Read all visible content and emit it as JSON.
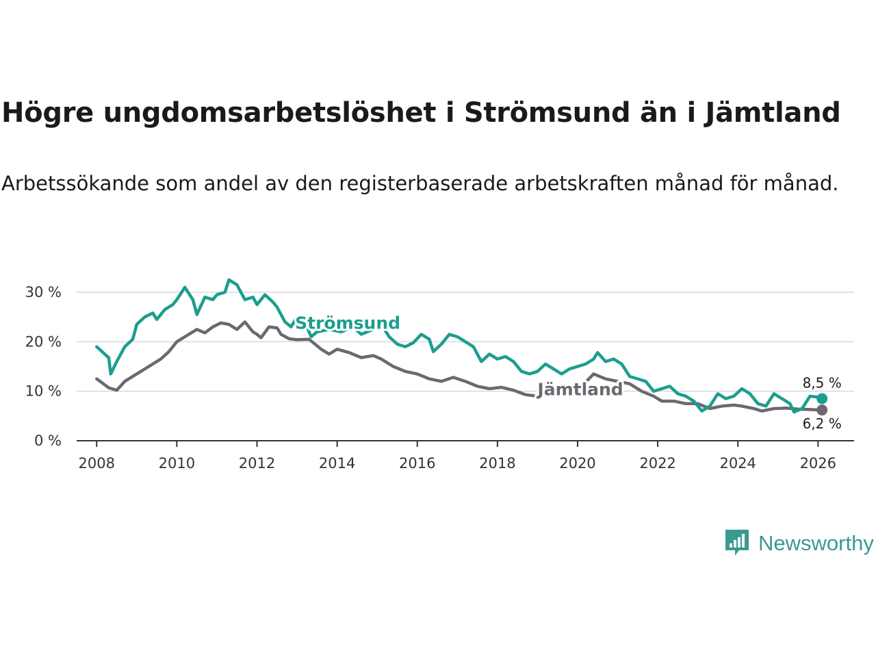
{
  "header": {
    "title": "Högre ungdomsarbetslöshet i Strömsund än i Jämtland",
    "subtitle": "Arbetssökande som andel av den registerbaserade arbetskraften månad för månad."
  },
  "brand": {
    "name": "Newsworthy",
    "icon": "newsworthy-logo-icon",
    "color": "#3a9a90"
  },
  "chart_data": {
    "type": "line",
    "title": "Högre ungdomsarbetslöshet i Strömsund än i Jämtland",
    "xlabel": "",
    "ylabel": "",
    "xlim": [
      2007.5,
      2026.9
    ],
    "ylim": [
      0,
      30
    ],
    "grid": true,
    "x_ticks": [
      2008,
      2010,
      2012,
      2014,
      2016,
      2018,
      2020,
      2022,
      2024,
      2026
    ],
    "x_tick_labels": [
      "2008",
      "2010",
      "2012",
      "2014",
      "2016",
      "2018",
      "2020",
      "2022",
      "2024",
      "2026"
    ],
    "y_ticks": [
      0,
      10,
      20,
      30
    ],
    "y_tick_labels": [
      "0 %",
      "10 %",
      "20 %",
      "30 %"
    ],
    "series": [
      {
        "name": "Jämtland",
        "color": "#6b6870",
        "label_position": "middle-right",
        "end_label": "6,2 %",
        "points": [
          [
            2008.0,
            12.5
          ],
          [
            2008.3,
            10.7
          ],
          [
            2008.5,
            10.2
          ],
          [
            2008.7,
            12.0
          ],
          [
            2009.0,
            13.5
          ],
          [
            2009.3,
            15.0
          ],
          [
            2009.6,
            16.5
          ],
          [
            2009.8,
            18.0
          ],
          [
            2010.0,
            20.0
          ],
          [
            2010.3,
            21.5
          ],
          [
            2010.5,
            22.5
          ],
          [
            2010.7,
            21.8
          ],
          [
            2010.9,
            23.0
          ],
          [
            2011.1,
            23.8
          ],
          [
            2011.3,
            23.5
          ],
          [
            2011.5,
            22.5
          ],
          [
            2011.7,
            24.0
          ],
          [
            2011.9,
            22.0
          ],
          [
            2012.0,
            21.5
          ],
          [
            2012.1,
            20.8
          ],
          [
            2012.3,
            23.0
          ],
          [
            2012.5,
            22.8
          ],
          [
            2012.6,
            21.5
          ],
          [
            2012.8,
            20.6
          ],
          [
            2013.0,
            20.4
          ],
          [
            2013.3,
            20.5
          ],
          [
            2013.6,
            18.5
          ],
          [
            2013.8,
            17.5
          ],
          [
            2014.0,
            18.5
          ],
          [
            2014.3,
            17.8
          ],
          [
            2014.6,
            16.8
          ],
          [
            2014.9,
            17.2
          ],
          [
            2015.1,
            16.5
          ],
          [
            2015.4,
            15.0
          ],
          [
            2015.7,
            14.0
          ],
          [
            2016.0,
            13.5
          ],
          [
            2016.3,
            12.5
          ],
          [
            2016.6,
            12.0
          ],
          [
            2016.9,
            12.8
          ],
          [
            2017.2,
            12.0
          ],
          [
            2017.5,
            11.0
          ],
          [
            2017.8,
            10.5
          ],
          [
            2018.1,
            10.8
          ],
          [
            2018.4,
            10.2
          ],
          [
            2018.7,
            9.3
          ],
          [
            2019.0,
            9.0
          ],
          [
            2019.3,
            9.5
          ],
          [
            2019.6,
            9.5
          ],
          [
            2019.9,
            10.0
          ],
          [
            2020.1,
            11.0
          ],
          [
            2020.4,
            13.5
          ],
          [
            2020.7,
            12.5
          ],
          [
            2021.0,
            12.0
          ],
          [
            2021.3,
            11.5
          ],
          [
            2021.6,
            10.0
          ],
          [
            2021.9,
            9.0
          ],
          [
            2022.1,
            8.0
          ],
          [
            2022.4,
            8.0
          ],
          [
            2022.7,
            7.5
          ],
          [
            2023.0,
            7.5
          ],
          [
            2023.3,
            6.5
          ],
          [
            2023.6,
            7.0
          ],
          [
            2023.9,
            7.2
          ],
          [
            2024.1,
            7.0
          ],
          [
            2024.4,
            6.5
          ],
          [
            2024.6,
            6.0
          ],
          [
            2024.9,
            6.5
          ],
          [
            2025.2,
            6.6
          ],
          [
            2025.5,
            6.4
          ],
          [
            2025.8,
            6.3
          ],
          [
            2026.1,
            6.2
          ]
        ]
      },
      {
        "name": "Strömsund",
        "color": "#1b9e8e",
        "label_position": "upper-middle",
        "end_label": "8,5 %",
        "points": [
          [
            2008.0,
            19.0
          ],
          [
            2008.2,
            17.5
          ],
          [
            2008.3,
            16.8
          ],
          [
            2008.35,
            13.5
          ],
          [
            2008.5,
            16.0
          ],
          [
            2008.7,
            19.0
          ],
          [
            2008.9,
            20.5
          ],
          [
            2009.0,
            23.5
          ],
          [
            2009.2,
            25.0
          ],
          [
            2009.4,
            25.8
          ],
          [
            2009.5,
            24.5
          ],
          [
            2009.7,
            26.5
          ],
          [
            2009.9,
            27.5
          ],
          [
            2010.0,
            28.5
          ],
          [
            2010.2,
            31.0
          ],
          [
            2010.4,
            28.5
          ],
          [
            2010.5,
            25.5
          ],
          [
            2010.7,
            29.0
          ],
          [
            2010.9,
            28.5
          ],
          [
            2011.0,
            29.5
          ],
          [
            2011.2,
            30.0
          ],
          [
            2011.3,
            32.5
          ],
          [
            2011.5,
            31.5
          ],
          [
            2011.7,
            28.5
          ],
          [
            2011.9,
            29.0
          ],
          [
            2012.0,
            27.5
          ],
          [
            2012.2,
            29.5
          ],
          [
            2012.4,
            28.0
          ],
          [
            2012.5,
            27.0
          ],
          [
            2012.7,
            24.0
          ],
          [
            2012.85,
            23.0
          ],
          [
            2013.0,
            25.0
          ],
          [
            2013.2,
            24.0
          ],
          [
            2013.35,
            21.0
          ],
          [
            2013.5,
            22.0
          ],
          [
            2013.8,
            22.5
          ],
          [
            2014.1,
            22.0
          ],
          [
            2014.4,
            23.0
          ],
          [
            2014.6,
            21.5
          ],
          [
            2014.9,
            22.5
          ],
          [
            2015.1,
            23.5
          ],
          [
            2015.3,
            21.0
          ],
          [
            2015.5,
            19.5
          ],
          [
            2015.7,
            19.0
          ],
          [
            2015.9,
            19.8
          ],
          [
            2016.1,
            21.5
          ],
          [
            2016.3,
            20.5
          ],
          [
            2016.4,
            18.0
          ],
          [
            2016.6,
            19.5
          ],
          [
            2016.8,
            21.5
          ],
          [
            2017.0,
            21.0
          ],
          [
            2017.2,
            20.0
          ],
          [
            2017.4,
            19.0
          ],
          [
            2017.6,
            16.0
          ],
          [
            2017.8,
            17.5
          ],
          [
            2018.0,
            16.5
          ],
          [
            2018.2,
            17.0
          ],
          [
            2018.4,
            16.0
          ],
          [
            2018.6,
            14.0
          ],
          [
            2018.8,
            13.5
          ],
          [
            2019.0,
            14.0
          ],
          [
            2019.2,
            15.5
          ],
          [
            2019.4,
            14.5
          ],
          [
            2019.6,
            13.5
          ],
          [
            2019.8,
            14.5
          ],
          [
            2020.0,
            15.0
          ],
          [
            2020.2,
            15.5
          ],
          [
            2020.4,
            16.5
          ],
          [
            2020.5,
            17.8
          ],
          [
            2020.7,
            16.0
          ],
          [
            2020.9,
            16.5
          ],
          [
            2021.1,
            15.5
          ],
          [
            2021.3,
            13.0
          ],
          [
            2021.5,
            12.5
          ],
          [
            2021.7,
            12.0
          ],
          [
            2021.9,
            10.0
          ],
          [
            2022.1,
            10.5
          ],
          [
            2022.3,
            11.0
          ],
          [
            2022.5,
            9.5
          ],
          [
            2022.7,
            9.0
          ],
          [
            2022.9,
            8.0
          ],
          [
            2023.1,
            6.0
          ],
          [
            2023.3,
            7.0
          ],
          [
            2023.5,
            9.5
          ],
          [
            2023.7,
            8.5
          ],
          [
            2023.9,
            9.0
          ],
          [
            2024.1,
            10.5
          ],
          [
            2024.3,
            9.5
          ],
          [
            2024.5,
            7.5
          ],
          [
            2024.7,
            7.0
          ],
          [
            2024.9,
            9.5
          ],
          [
            2025.1,
            8.5
          ],
          [
            2025.3,
            7.5
          ],
          [
            2025.4,
            5.8
          ],
          [
            2025.6,
            6.5
          ],
          [
            2025.8,
            9.0
          ],
          [
            2026.0,
            8.8
          ],
          [
            2026.1,
            8.5
          ]
        ]
      }
    ]
  }
}
